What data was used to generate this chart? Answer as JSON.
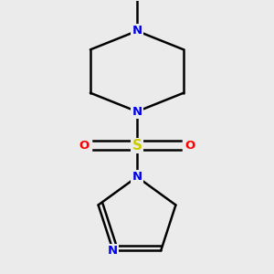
{
  "bg_color": "#ebebeb",
  "bond_color": "#000000",
  "N_color": "#0000ee",
  "S_color": "#cccc00",
  "O_color": "#ff0000",
  "line_width": 1.8,
  "font_size_atom": 9.5,
  "fig_size": [
    3.0,
    3.0
  ],
  "xlim": [
    -1.2,
    1.2
  ],
  "ylim": [
    -1.55,
    1.65
  ]
}
